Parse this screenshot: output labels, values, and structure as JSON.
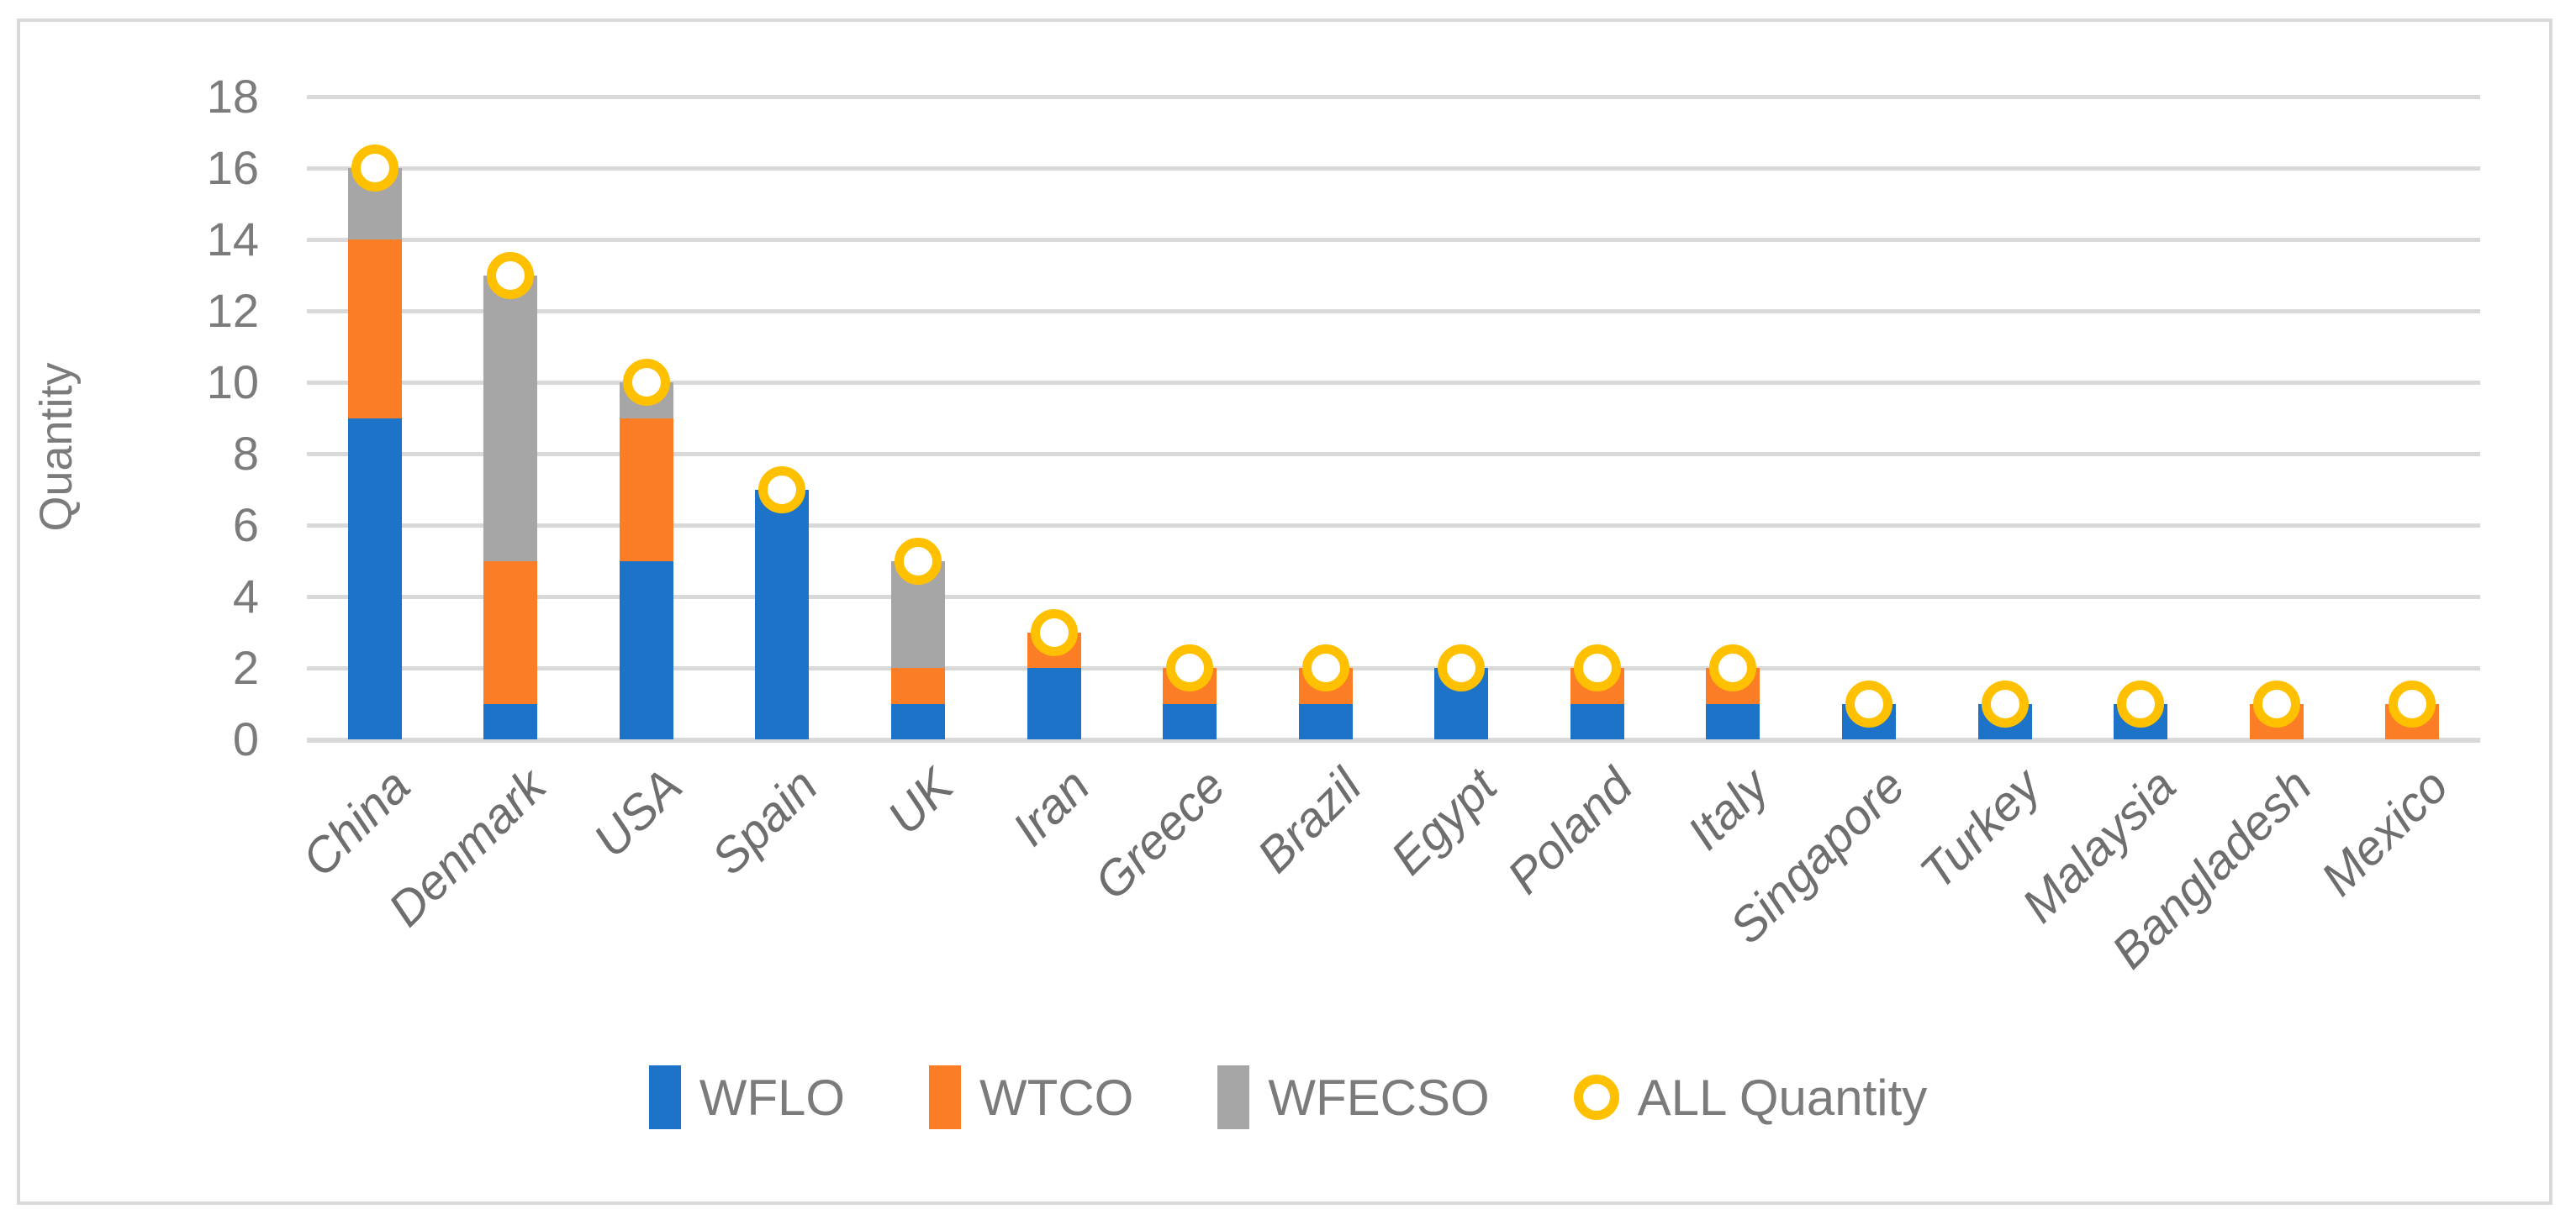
{
  "figure": {
    "background": "#FFFFFF",
    "border_color": "#D9D9D9"
  },
  "chart_data": {
    "type": "bar",
    "stacked": true,
    "ylabel": "Quantity",
    "ylim": [
      0,
      18
    ],
    "yticks": [
      0,
      2,
      4,
      6,
      8,
      10,
      12,
      14,
      16,
      18
    ],
    "grid": "horizontal",
    "legend_position": "bottom-center",
    "categories": [
      "China",
      "Denmark",
      "USA",
      "Spain",
      "UK",
      "Iran",
      "Greece",
      "Brazil",
      "Egypt",
      "Poland",
      "Italy",
      "Singapore",
      "Turkey",
      "Malaysia",
      "Bangladesh",
      "Mexico"
    ],
    "series": [
      {
        "name": "WFLO",
        "color": "#1C73C8",
        "values": [
          9,
          1,
          5,
          7,
          1,
          2,
          1,
          1,
          2,
          1,
          1,
          1,
          1,
          1,
          0,
          0
        ]
      },
      {
        "name": "WTCO",
        "color": "#FB7D26",
        "values": [
          5,
          4,
          4,
          0,
          1,
          1,
          1,
          1,
          0,
          1,
          1,
          0,
          0,
          0,
          1,
          1
        ]
      },
      {
        "name": "WFECSO",
        "color": "#A6A6A6",
        "values": [
          2,
          8,
          1,
          0,
          3,
          0,
          0,
          0,
          0,
          0,
          0,
          0,
          0,
          0,
          0,
          0
        ]
      }
    ],
    "marker_series": {
      "name": "ALL Quantity",
      "color": "#FFC000",
      "values": [
        16,
        13,
        10,
        7,
        5,
        3,
        2,
        2,
        2,
        2,
        2,
        1,
        1,
        1,
        1,
        1
      ]
    },
    "colors": {
      "gridline": "#D9D9D9",
      "axis_text": "#7B7B7B",
      "category_text": "#6E6E6E",
      "marker_fill": "#FFFFFF"
    }
  }
}
